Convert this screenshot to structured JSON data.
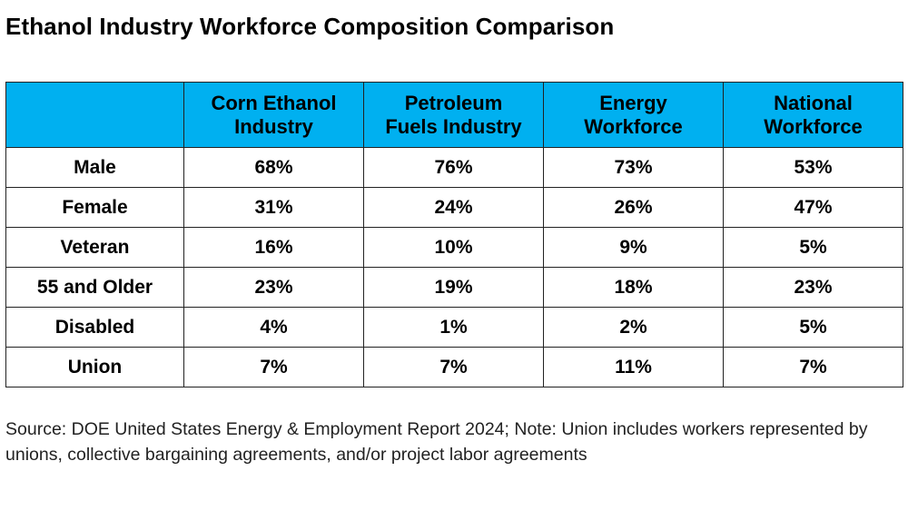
{
  "title": "Ethanol Industry Workforce Composition Comparison",
  "table": {
    "header_corner": "",
    "columns": [
      [
        "Corn Ethanol",
        "Industry"
      ],
      [
        "Petroleum",
        "Fuels Industry"
      ],
      [
        "Energy",
        "Workforce"
      ],
      [
        "National",
        "Workforce"
      ]
    ],
    "rows": [
      {
        "label": "Male",
        "values": [
          "68%",
          "76%",
          "73%",
          "53%"
        ]
      },
      {
        "label": "Female",
        "values": [
          "31%",
          "24%",
          "26%",
          "47%"
        ]
      },
      {
        "label": "Veteran",
        "values": [
          "16%",
          "10%",
          "9%",
          "5%"
        ]
      },
      {
        "label": "55 and Older",
        "values": [
          "23%",
          "19%",
          "18%",
          "23%"
        ]
      },
      {
        "label": "Disabled",
        "values": [
          "4%",
          "1%",
          "2%",
          "5%"
        ]
      },
      {
        "label": "Union",
        "values": [
          "7%",
          "7%",
          "11%",
          "7%"
        ]
      }
    ]
  },
  "source_note": "Source: DOE United States Energy & Employment Report 2024; Note: Union includes workers represented by unions, collective bargaining agreements, and/or project labor agreements",
  "colors": {
    "header_fill": "#00b0f0",
    "border": "#222222"
  },
  "chart_data": {
    "type": "table",
    "title": "Ethanol Industry Workforce Composition Comparison",
    "columns": [
      "Corn Ethanol Industry",
      "Petroleum Fuels Industry",
      "Energy Workforce",
      "National Workforce"
    ],
    "row_labels": [
      "Male",
      "Female",
      "Veteran",
      "55 and Older",
      "Disabled",
      "Union"
    ],
    "values": [
      [
        68,
        76,
        73,
        53
      ],
      [
        31,
        24,
        26,
        47
      ],
      [
        16,
        10,
        9,
        5
      ],
      [
        23,
        19,
        18,
        23
      ],
      [
        4,
        1,
        2,
        5
      ],
      [
        7,
        7,
        11,
        7
      ]
    ],
    "unit": "%"
  }
}
